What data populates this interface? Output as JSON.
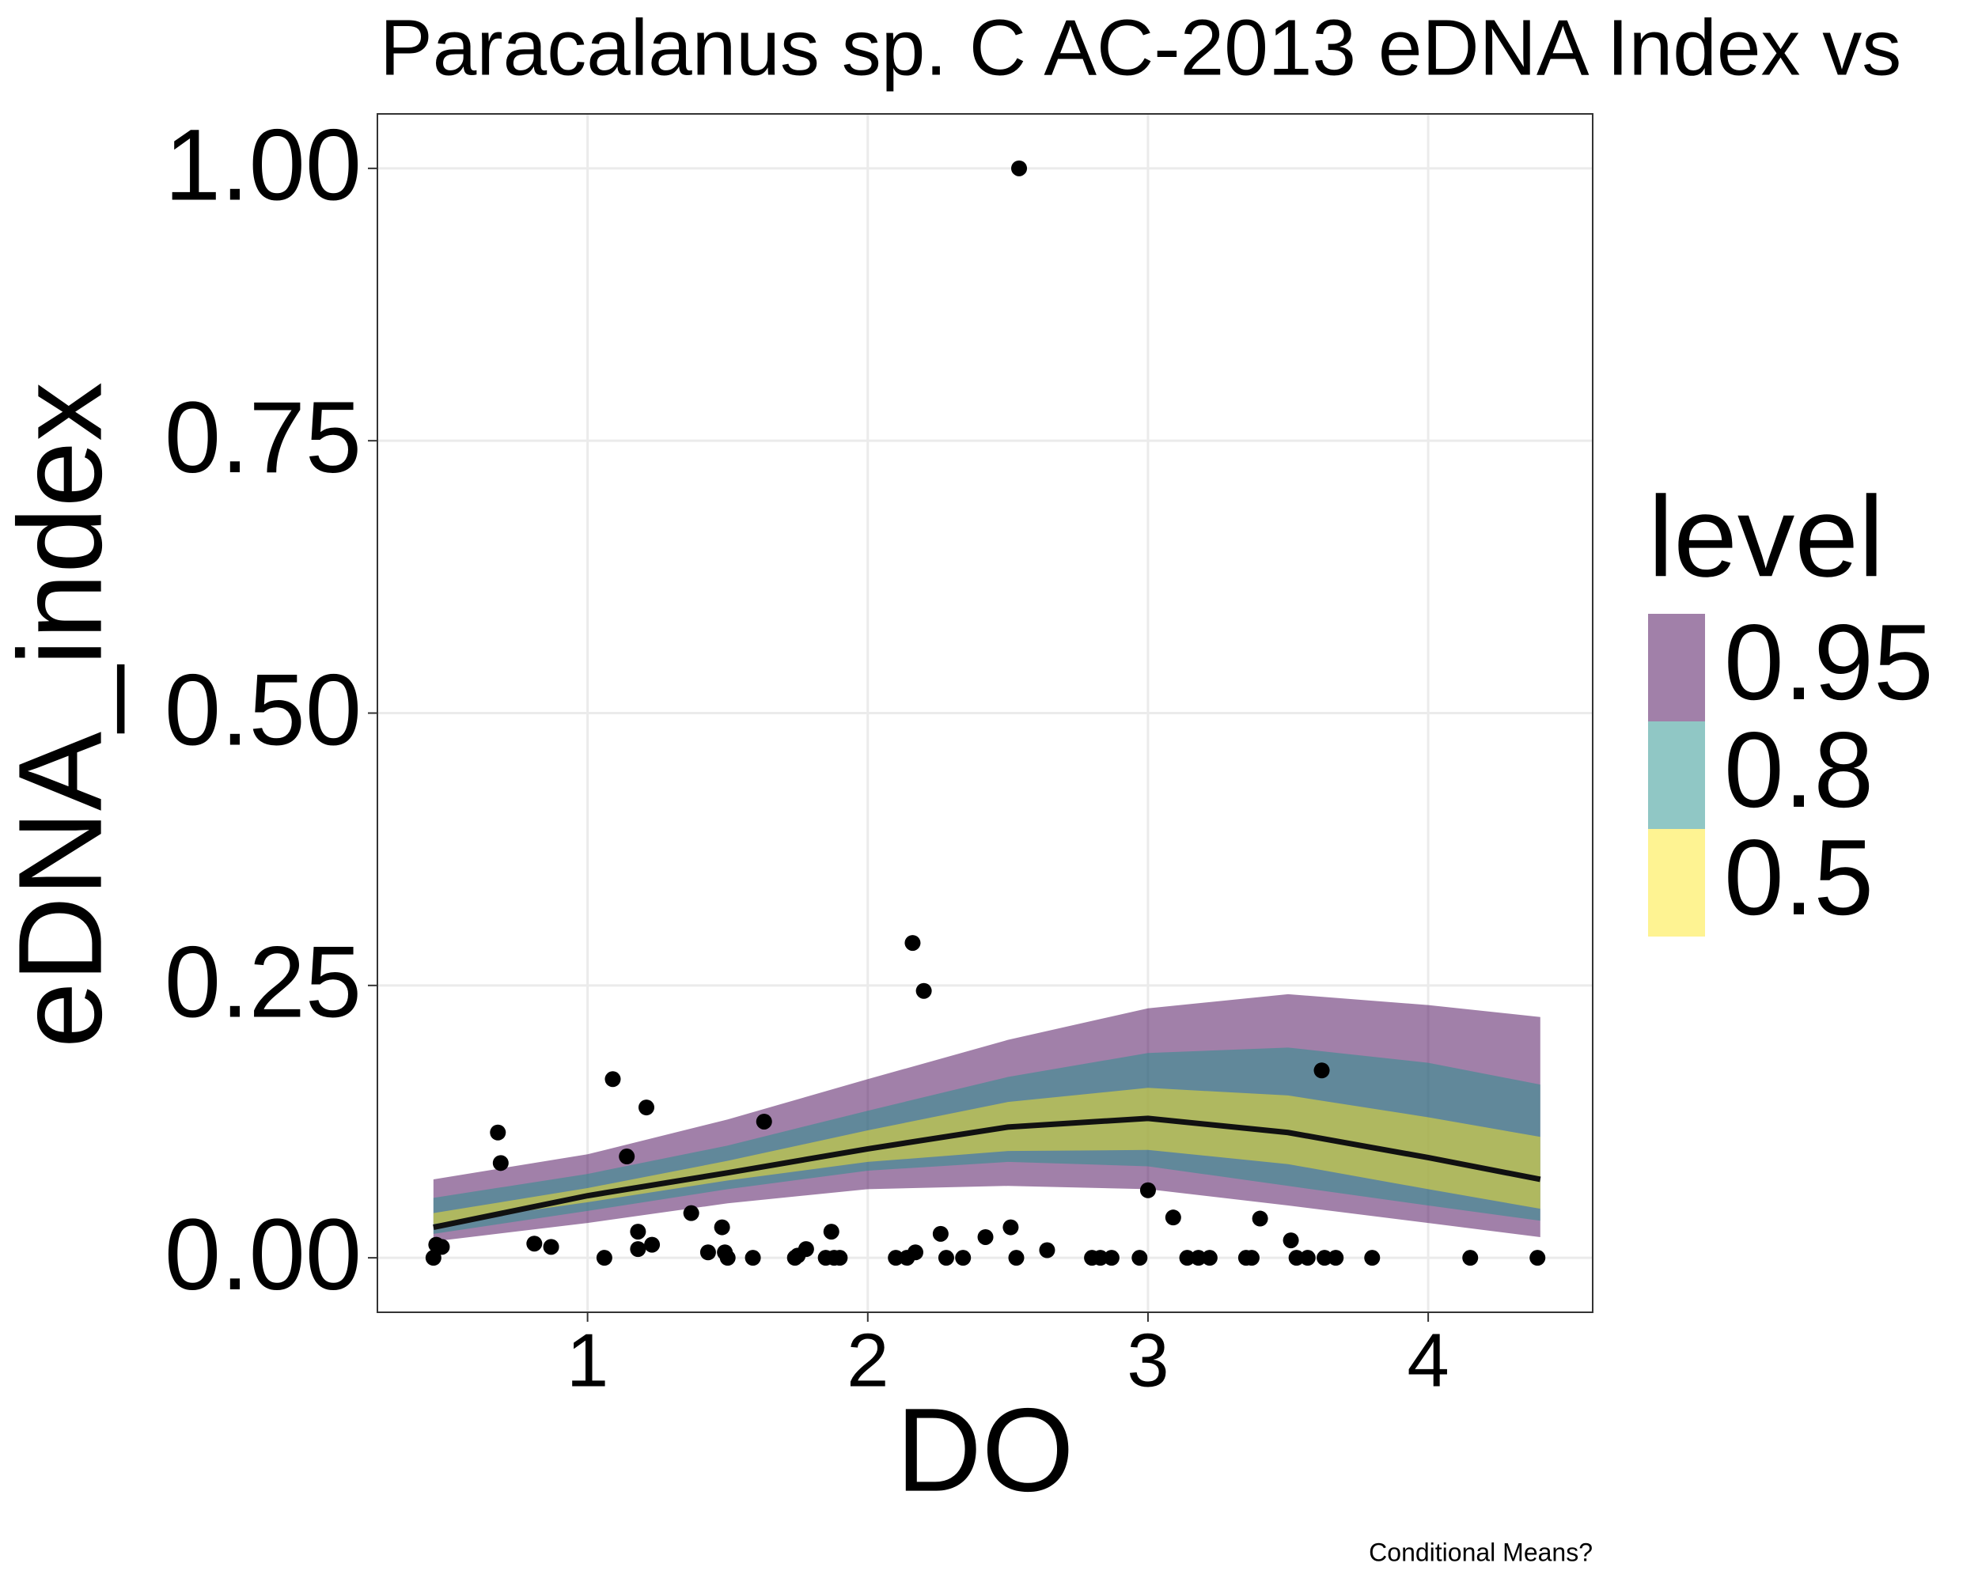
{
  "chart_data": {
    "type": "line",
    "title": "Paracalanus sp. C AC-2013 eDNA Index vs",
    "x_label": "DO",
    "y_label": "eDNA_index",
    "caption": "Conditional Means?",
    "xlim": [
      0.25,
      4.587
    ],
    "ylim": [
      -0.05,
      1.05
    ],
    "xticks": [
      1,
      2,
      3,
      4
    ],
    "yticks": [
      {
        "value": 0,
        "label": "0.00"
      },
      {
        "value": 0.25,
        "label": "0.25"
      },
      {
        "value": 0.5,
        "label": "0.50"
      },
      {
        "value": 0.75,
        "label": "0.75"
      },
      {
        "value": 1,
        "label": "1.00"
      }
    ],
    "grid": true,
    "legend_title": "level",
    "band_alpha": 0.5,
    "x": [
      0.45,
      1,
      1.5,
      2,
      2.5,
      3,
      3.5,
      4,
      4.4
    ],
    "line": {
      "color": "#111111",
      "values": [
        0.028,
        0.057,
        0.078,
        0.1,
        0.12,
        0.128,
        0.115,
        0.092,
        0.072
      ]
    },
    "bands": [
      {
        "name": "0.95",
        "color": "#440154",
        "lower": [
          0.015,
          0.032,
          0.05,
          0.063,
          0.066,
          0.063,
          0.048,
          0.032,
          0.019
        ],
        "upper": [
          0.072,
          0.095,
          0.127,
          0.164,
          0.2,
          0.229,
          0.242,
          0.232,
          0.221
        ]
      },
      {
        "name": "0.8",
        "color": "#21908C",
        "lower": [
          0.022,
          0.043,
          0.063,
          0.08,
          0.088,
          0.084,
          0.066,
          0.048,
          0.034
        ],
        "upper": [
          0.055,
          0.077,
          0.103,
          0.135,
          0.166,
          0.188,
          0.193,
          0.179,
          0.159
        ]
      },
      {
        "name": "0.5",
        "color": "#FDE725",
        "lower": [
          0.031,
          0.051,
          0.071,
          0.088,
          0.098,
          0.099,
          0.086,
          0.063,
          0.045
        ],
        "upper": [
          0.041,
          0.064,
          0.089,
          0.117,
          0.143,
          0.156,
          0.149,
          0.129,
          0.111
        ]
      }
    ],
    "points": {
      "color": "#000000",
      "x": [
        0.45,
        0.46,
        0.48,
        0.68,
        0.69,
        0.81,
        0.87,
        1.06,
        1.09,
        1.14,
        1.18,
        1.18,
        1.21,
        1.23,
        1.37,
        1.43,
        1.48,
        1.49,
        1.5,
        1.59,
        1.63,
        1.74,
        1.75,
        1.78,
        1.85,
        1.87,
        1.88,
        1.9,
        2.1,
        2.14,
        2.16,
        2.17,
        2.2,
        2.26,
        2.28,
        2.34,
        2.42,
        2.51,
        2.53,
        2.54,
        2.64,
        2.8,
        2.83,
        2.87,
        2.97,
        3.0,
        3.09,
        3.14,
        3.18,
        3.22,
        3.35,
        3.37,
        3.4,
        3.51,
        3.53,
        3.57,
        3.62,
        3.63,
        3.67,
        3.8,
        4.15,
        4.39
      ],
      "y": [
        0,
        0.012,
        0.01,
        0.115,
        0.087,
        0.013,
        0.01,
        0,
        0.164,
        0.093,
        0.024,
        0.008,
        0.138,
        0.012,
        0.041,
        0.005,
        0.028,
        0.005,
        0,
        0,
        0.125,
        0,
        0.002,
        0.008,
        0,
        0.024,
        0,
        0,
        0,
        0,
        0.289,
        0.005,
        0.245,
        0.022,
        0,
        0,
        0.019,
        0.028,
        0,
        1.0,
        0.007,
        0,
        0,
        0,
        0,
        0.062,
        0.037,
        0,
        0,
        0,
        0,
        0,
        0.036,
        0.016,
        0,
        0,
        0.172,
        0,
        0,
        0,
        0,
        0
      ]
    }
  }
}
